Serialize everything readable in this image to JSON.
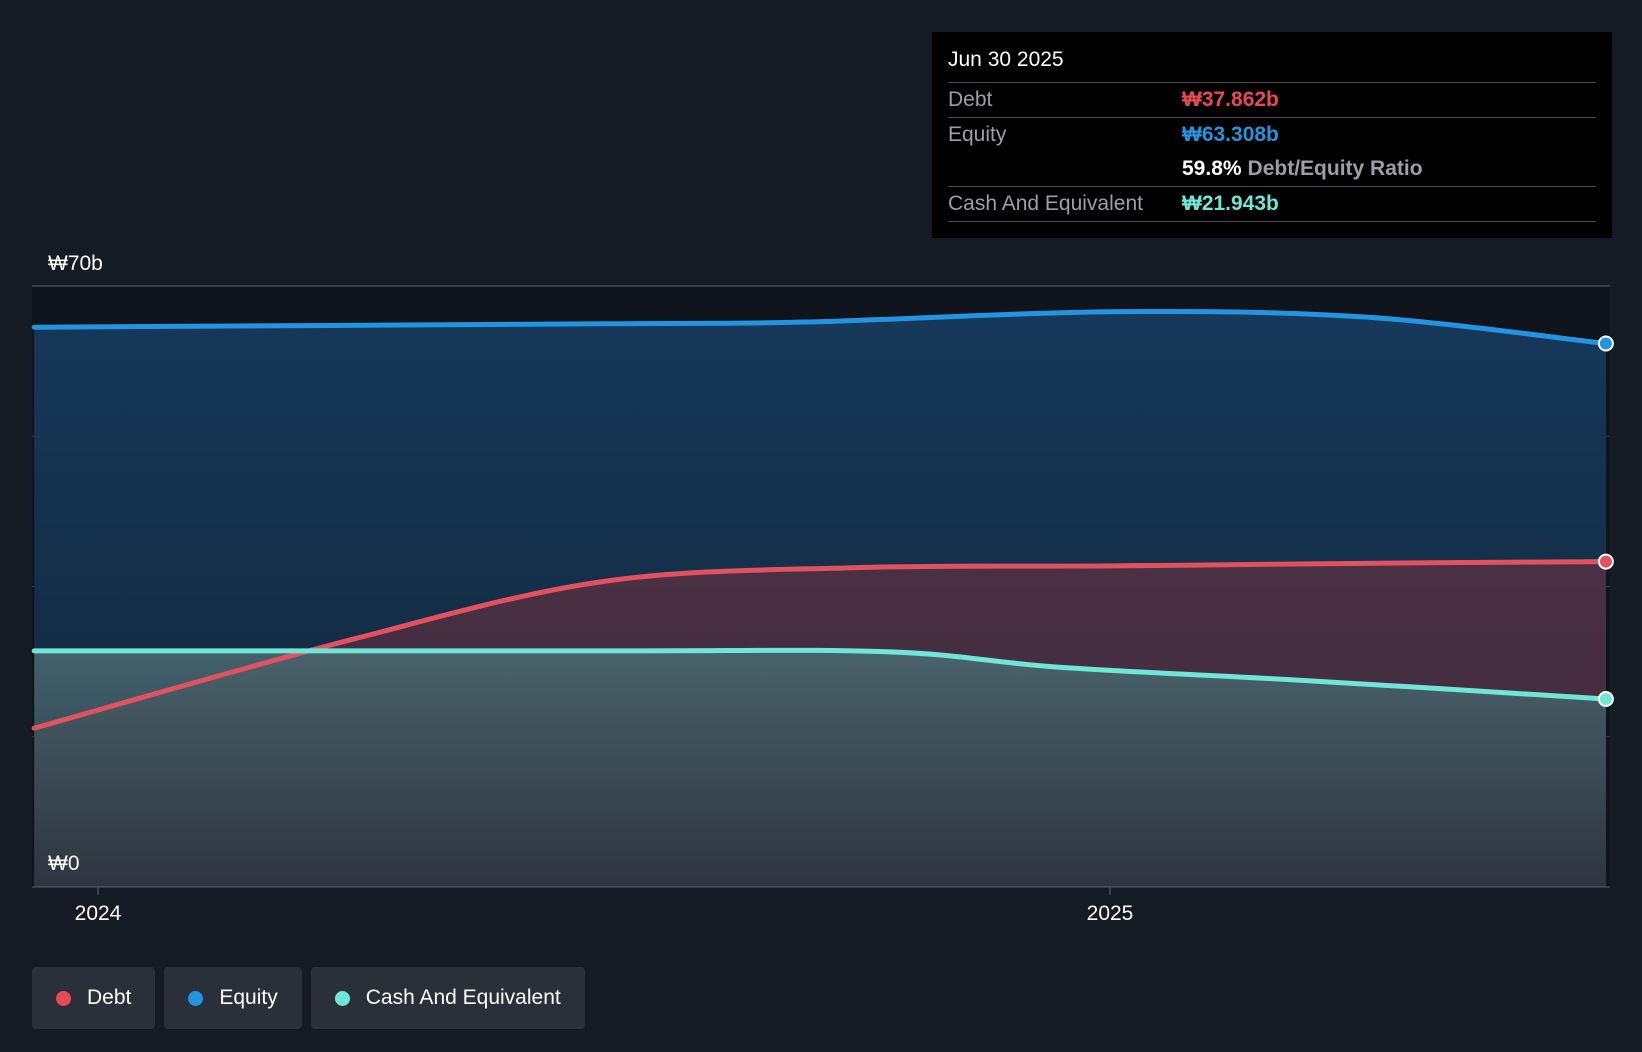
{
  "chart_data": {
    "type": "area",
    "y_axis": {
      "label_max": "₩70b",
      "label_min": "₩0",
      "ylim": [
        0,
        70
      ]
    },
    "x_axis": {
      "ticks": [
        {
          "label": "2024",
          "x": 0
        },
        {
          "label": "2025",
          "x": 1
        }
      ],
      "xlim": [
        -0.063,
        1.49
      ]
    },
    "series": [
      {
        "name": "Equity",
        "color": "#2394df",
        "points": [
          [
            -0.063,
            65.2
          ],
          [
            0.5,
            65.6
          ],
          [
            0.7,
            65.8
          ],
          [
            1.0,
            67.0
          ],
          [
            1.25,
            66.4
          ],
          [
            1.49,
            63.3
          ]
        ]
      },
      {
        "name": "Debt",
        "color": "#e05260",
        "points": [
          [
            -0.063,
            18.5
          ],
          [
            0.25,
            28.8
          ],
          [
            0.5,
            35.6
          ],
          [
            0.75,
            37.2
          ],
          [
            1.0,
            37.4
          ],
          [
            1.25,
            37.7
          ],
          [
            1.49,
            37.9
          ]
        ]
      },
      {
        "name": "Cash And Equivalent",
        "color": "#6fe6d6",
        "points": [
          [
            -0.063,
            27.5
          ],
          [
            0.5,
            27.5
          ],
          [
            0.78,
            27.4
          ],
          [
            0.95,
            25.6
          ],
          [
            1.2,
            24.0
          ],
          [
            1.49,
            21.9
          ]
        ]
      }
    ]
  },
  "tooltip": {
    "date": "Jun 30 2025",
    "debt_label": "Debt",
    "debt_value": "₩37.862b",
    "debt_color": "#e84a55",
    "equity_label": "Equity",
    "equity_value": "₩63.308b",
    "equity_color": "#2394df",
    "ratio_value": "59.8%",
    "ratio_label": "Debt/Equity Ratio",
    "cash_label": "Cash And Equivalent",
    "cash_value": "₩21.943b",
    "cash_color": "#6fe6d6"
  },
  "legend": [
    {
      "label": "Debt",
      "color": "#e84a55"
    },
    {
      "label": "Equity",
      "color": "#2394df"
    },
    {
      "label": "Cash And Equivalent",
      "color": "#6fe6d6"
    }
  ]
}
